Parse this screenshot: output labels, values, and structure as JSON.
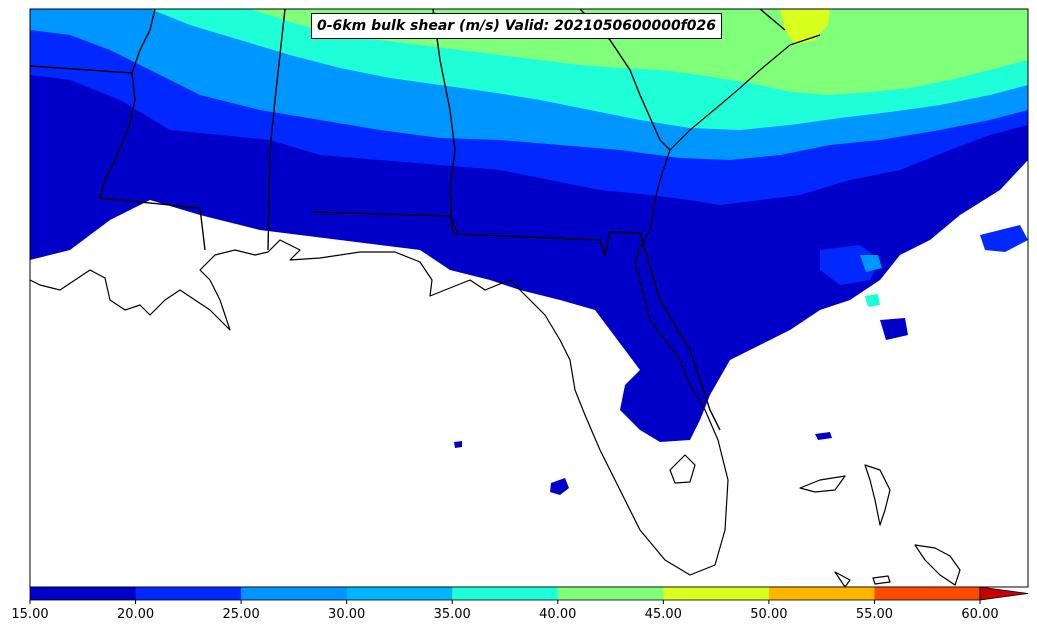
{
  "title": "0-6km bulk shear (m/s) Valid: 2021050600000f026",
  "colorbar": {
    "ticks": [
      "15.00",
      "20.00",
      "25.00",
      "30.00",
      "35.00",
      "40.00",
      "45.00",
      "50.00",
      "55.00",
      "60.00"
    ],
    "colors": [
      "#0000c8",
      "#0028ff",
      "#0096ff",
      "#00b4ff",
      "#1effd8",
      "#7fff7a",
      "#d8ff1e",
      "#ffb400",
      "#ff4b00",
      "#c80000"
    ],
    "extend": "max"
  },
  "map": {
    "region": "Southeastern United States and Gulf of Mexico",
    "colors": {
      "background": "#ffffff",
      "coast": "#000000",
      "b15": "#0000c8",
      "b20": "#0028ff",
      "b25": "#0096ff",
      "b30": "#1effd8",
      "b35": "#7fff7a",
      "b40": "#d8ff1e"
    }
  }
}
